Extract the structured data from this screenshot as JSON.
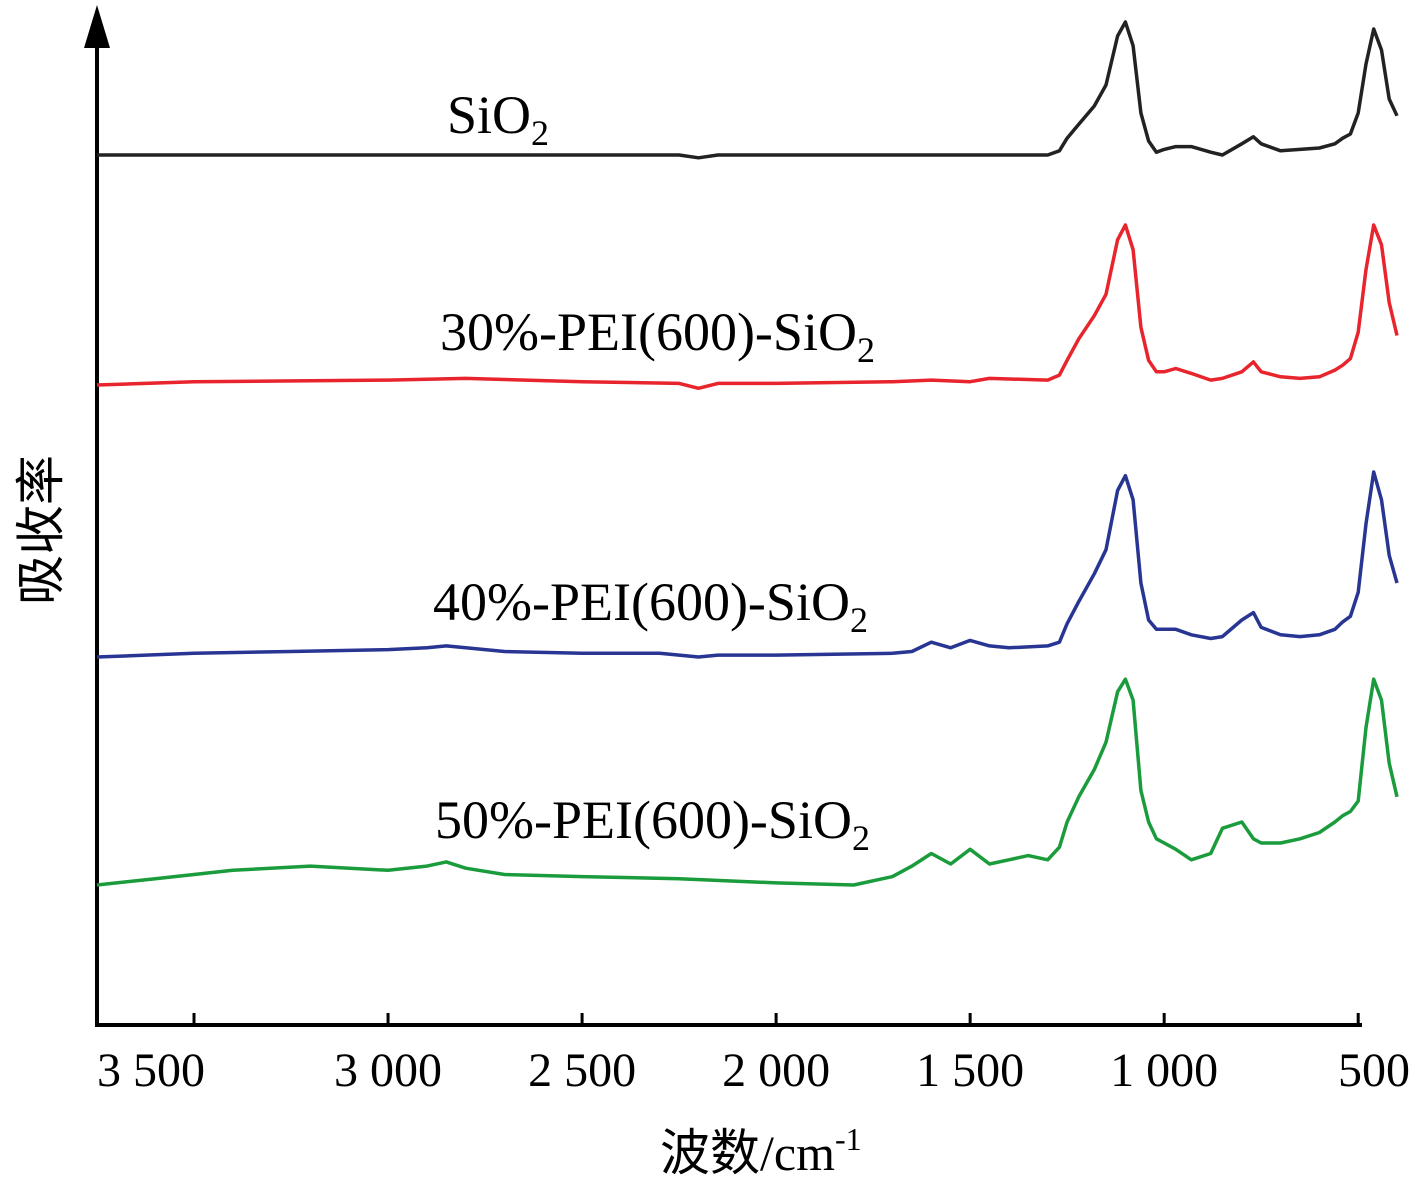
{
  "chart_data": {
    "type": "line",
    "xlabel": "波数/cm",
    "xlabel_sup": "-1",
    "ylabel": "吸收率",
    "x_reversed": true,
    "xlim": [
      3750,
      400
    ],
    "x_ticks": [
      3500,
      3000,
      2500,
      2000,
      1500,
      1000,
      500
    ],
    "x_tick_labels": [
      "3 500",
      "3 000",
      "2 500",
      "2 000",
      "1 500",
      "1 000",
      "500"
    ],
    "y_ticks_shown": false,
    "grid": false,
    "legend": "inline labels",
    "series": [
      {
        "name": "SiO",
        "name_sub": "2",
        "color": "#222222",
        "x": [
          3750,
          3000,
          2500,
          2250,
          2200,
          2150,
          2000,
          1500,
          1300,
          1270,
          1250,
          1220,
          1180,
          1150,
          1120,
          1100,
          1080,
          1060,
          1040,
          1020,
          1000,
          970,
          930,
          880,
          850,
          800,
          770,
          750,
          700,
          650,
          600,
          560,
          540,
          520,
          500,
          480,
          460,
          440,
          420,
          400
        ],
        "y": [
          0.0,
          0.0,
          0.0,
          0.0,
          -0.02,
          0.0,
          0.0,
          0.0,
          0.0,
          0.03,
          0.12,
          0.22,
          0.35,
          0.5,
          0.85,
          0.95,
          0.78,
          0.3,
          0.1,
          0.02,
          0.04,
          0.06,
          0.06,
          0.02,
          0.0,
          0.08,
          0.13,
          0.08,
          0.03,
          0.04,
          0.05,
          0.08,
          0.12,
          0.15,
          0.3,
          0.65,
          0.9,
          0.75,
          0.4,
          0.28
        ]
      },
      {
        "name": "30%-PEI(600)-SiO",
        "name_sub": "2",
        "color": "#e8242c",
        "x": [
          3750,
          3500,
          3000,
          2800,
          2500,
          2250,
          2200,
          2150,
          2000,
          1700,
          1600,
          1500,
          1450,
          1300,
          1270,
          1250,
          1220,
          1180,
          1150,
          1120,
          1100,
          1080,
          1060,
          1040,
          1020,
          1000,
          970,
          930,
          880,
          850,
          800,
          770,
          750,
          700,
          650,
          600,
          560,
          540,
          520,
          500,
          480,
          460,
          440,
          420,
          400
        ],
        "y": [
          0.0,
          0.02,
          0.03,
          0.04,
          0.02,
          0.01,
          -0.02,
          0.01,
          0.01,
          0.02,
          0.03,
          0.02,
          0.04,
          0.03,
          0.06,
          0.15,
          0.28,
          0.42,
          0.55,
          0.88,
          0.97,
          0.82,
          0.35,
          0.15,
          0.08,
          0.08,
          0.1,
          0.07,
          0.03,
          0.04,
          0.08,
          0.14,
          0.08,
          0.05,
          0.04,
          0.05,
          0.09,
          0.12,
          0.16,
          0.32,
          0.7,
          0.97,
          0.85,
          0.5,
          0.3
        ]
      },
      {
        "name": "40%-PEI(600)-SiO",
        "name_sub": "2",
        "color": "#283593",
        "x": [
          3750,
          3500,
          3250,
          3000,
          2900,
          2850,
          2800,
          2700,
          2500,
          2300,
          2200,
          2150,
          2000,
          1700,
          1650,
          1600,
          1550,
          1500,
          1450,
          1400,
          1300,
          1270,
          1250,
          1220,
          1180,
          1150,
          1120,
          1100,
          1080,
          1060,
          1040,
          1020,
          1000,
          970,
          930,
          880,
          850,
          800,
          770,
          750,
          700,
          650,
          600,
          560,
          540,
          520,
          500,
          480,
          460,
          440,
          420,
          400
        ],
        "y": [
          0.0,
          0.02,
          0.03,
          0.04,
          0.05,
          0.06,
          0.05,
          0.03,
          0.02,
          0.02,
          0.0,
          0.01,
          0.01,
          0.02,
          0.03,
          0.08,
          0.05,
          0.09,
          0.06,
          0.05,
          0.06,
          0.08,
          0.18,
          0.3,
          0.45,
          0.58,
          0.9,
          0.98,
          0.85,
          0.4,
          0.2,
          0.15,
          0.15,
          0.15,
          0.12,
          0.1,
          0.11,
          0.2,
          0.24,
          0.16,
          0.12,
          0.11,
          0.12,
          0.15,
          0.19,
          0.22,
          0.35,
          0.72,
          1.0,
          0.85,
          0.55,
          0.4
        ]
      },
      {
        "name": "50%-PEI(600)-SiO",
        "name_sub": "2",
        "color": "#1a9b3c",
        "x": [
          3750,
          3600,
          3400,
          3200,
          3000,
          2900,
          2850,
          2800,
          2700,
          2500,
          2250,
          2000,
          1800,
          1700,
          1650,
          1600,
          1550,
          1500,
          1450,
          1400,
          1350,
          1300,
          1270,
          1250,
          1220,
          1180,
          1150,
          1120,
          1100,
          1080,
          1060,
          1040,
          1020,
          1000,
          970,
          930,
          880,
          850,
          800,
          770,
          750,
          700,
          650,
          600,
          560,
          540,
          520,
          500,
          480,
          460,
          440,
          420,
          400
        ],
        "y": [
          0.0,
          0.03,
          0.07,
          0.09,
          0.07,
          0.09,
          0.11,
          0.08,
          0.05,
          0.04,
          0.03,
          0.01,
          0.0,
          0.04,
          0.09,
          0.15,
          0.1,
          0.17,
          0.1,
          0.12,
          0.14,
          0.12,
          0.18,
          0.3,
          0.42,
          0.55,
          0.68,
          0.92,
          0.98,
          0.88,
          0.45,
          0.3,
          0.22,
          0.2,
          0.17,
          0.12,
          0.15,
          0.27,
          0.3,
          0.22,
          0.2,
          0.2,
          0.22,
          0.25,
          0.3,
          0.33,
          0.35,
          0.4,
          0.75,
          0.98,
          0.88,
          0.58,
          0.42
        ]
      }
    ]
  }
}
